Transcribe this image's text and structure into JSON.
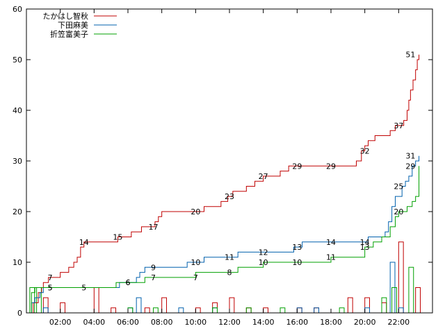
{
  "chart_data": {
    "type": "line",
    "xlim": [
      0,
      24
    ],
    "ylim": [
      0,
      60
    ],
    "yticks": [
      0,
      10,
      20,
      30,
      40,
      50,
      60
    ],
    "xticks": [
      {
        "v": 2,
        "label": "02:00"
      },
      {
        "v": 4,
        "label": "04:00"
      },
      {
        "v": 6,
        "label": "06:00"
      },
      {
        "v": 8,
        "label": "08:00"
      },
      {
        "v": 10,
        "label": "10:00"
      },
      {
        "v": 12,
        "label": "12:00"
      },
      {
        "v": 14,
        "label": "14:00"
      },
      {
        "v": 16,
        "label": "16:00"
      },
      {
        "v": 18,
        "label": "18:00"
      },
      {
        "v": 20,
        "label": "20:00"
      },
      {
        "v": 22,
        "label": "22:00"
      }
    ],
    "legend_position": "top-left",
    "series": [
      {
        "name": "たかはし智秋",
        "color": "#c00000",
        "points": [
          [
            0,
            0
          ],
          [
            0.4,
            2
          ],
          [
            0.7,
            4
          ],
          [
            0.9,
            5
          ],
          [
            1.0,
            6
          ],
          [
            1.3,
            7
          ],
          [
            2.0,
            8
          ],
          [
            2.5,
            9
          ],
          [
            2.8,
            10
          ],
          [
            3.0,
            11
          ],
          [
            3.2,
            13
          ],
          [
            3.4,
            14
          ],
          [
            5.4,
            15
          ],
          [
            6.2,
            16
          ],
          [
            6.8,
            17
          ],
          [
            7.6,
            18
          ],
          [
            7.8,
            19
          ],
          [
            8.0,
            20
          ],
          [
            10.5,
            21
          ],
          [
            11.5,
            22
          ],
          [
            11.9,
            23
          ],
          [
            12.2,
            24
          ],
          [
            13.0,
            25
          ],
          [
            13.5,
            26
          ],
          [
            14.0,
            27
          ],
          [
            15.0,
            28
          ],
          [
            15.5,
            29
          ],
          [
            19.5,
            30
          ],
          [
            19.8,
            32
          ],
          [
            20.0,
            33
          ],
          [
            20.2,
            34
          ],
          [
            20.6,
            35
          ],
          [
            21.5,
            36
          ],
          [
            21.8,
            37
          ],
          [
            22.3,
            38
          ],
          [
            22.5,
            40
          ],
          [
            22.6,
            42
          ],
          [
            22.7,
            44
          ],
          [
            22.85,
            46
          ],
          [
            23.0,
            48
          ],
          [
            23.1,
            50
          ],
          [
            23.2,
            51
          ]
        ],
        "labels": [
          [
            1.4,
            7,
            "7"
          ],
          [
            3.4,
            14,
            "14"
          ],
          [
            5.4,
            15,
            "15"
          ],
          [
            7.5,
            17,
            "17"
          ],
          [
            10.0,
            20,
            "20"
          ],
          [
            12.0,
            23,
            "23"
          ],
          [
            14.0,
            27,
            "27"
          ],
          [
            16.0,
            29,
            "29"
          ],
          [
            18.0,
            29,
            "29"
          ],
          [
            20.0,
            32,
            "32"
          ],
          [
            22.0,
            37,
            "37"
          ],
          [
            22.7,
            51,
            "51"
          ]
        ],
        "bars": [
          [
            1.0,
            3
          ],
          [
            2.0,
            2
          ],
          [
            4.0,
            5
          ],
          [
            5.0,
            1
          ],
          [
            7.0,
            1
          ],
          [
            8.0,
            3
          ],
          [
            10.0,
            1
          ],
          [
            11.0,
            2
          ],
          [
            12.0,
            3
          ],
          [
            13.0,
            1
          ],
          [
            14.0,
            1
          ],
          [
            16.0,
            1
          ],
          [
            17.0,
            1
          ],
          [
            19.0,
            3
          ],
          [
            20.0,
            3
          ],
          [
            21.0,
            2
          ],
          [
            22.0,
            14
          ],
          [
            23.0,
            5
          ]
        ]
      },
      {
        "name": "下田麻美",
        "color": "#0060ad",
        "points": [
          [
            0,
            0
          ],
          [
            0.3,
            2
          ],
          [
            0.5,
            3
          ],
          [
            0.8,
            4
          ],
          [
            1.0,
            5
          ],
          [
            5.0,
            5
          ],
          [
            5.5,
            6
          ],
          [
            6.5,
            7
          ],
          [
            6.7,
            8
          ],
          [
            7.0,
            9
          ],
          [
            9.5,
            10
          ],
          [
            10.5,
            11
          ],
          [
            12.0,
            11
          ],
          [
            12.5,
            12
          ],
          [
            15.5,
            12
          ],
          [
            15.8,
            13
          ],
          [
            16.3,
            14
          ],
          [
            20.0,
            14
          ],
          [
            20.2,
            15
          ],
          [
            21.0,
            15
          ],
          [
            21.2,
            16
          ],
          [
            21.4,
            18
          ],
          [
            21.6,
            21
          ],
          [
            21.8,
            23
          ],
          [
            22.2,
            25
          ],
          [
            22.4,
            26
          ],
          [
            22.6,
            27
          ],
          [
            22.8,
            29
          ],
          [
            23.0,
            30
          ],
          [
            23.2,
            31
          ]
        ],
        "labels": [
          [
            1.4,
            5,
            "5"
          ],
          [
            6.0,
            6,
            "6"
          ],
          [
            7.5,
            9,
            "9"
          ],
          [
            10.0,
            10,
            "10"
          ],
          [
            12.0,
            11,
            "11"
          ],
          [
            14.0,
            12,
            "12"
          ],
          [
            16.0,
            13,
            "13"
          ],
          [
            18.0,
            14,
            "14"
          ],
          [
            20.0,
            14,
            "14"
          ],
          [
            22.0,
            25,
            "25"
          ],
          [
            22.7,
            31,
            "31"
          ]
        ],
        "bars": [
          [
            1.0,
            1
          ],
          [
            6.0,
            1
          ],
          [
            6.5,
            3
          ],
          [
            9.0,
            1
          ],
          [
            11.0,
            1
          ],
          [
            16.0,
            1
          ],
          [
            17.0,
            1
          ],
          [
            20.0,
            1
          ],
          [
            21.5,
            10
          ],
          [
            22.0,
            1
          ]
        ]
      },
      {
        "name": "折笠富美子",
        "color": "#00a000",
        "points": [
          [
            0,
            0
          ],
          [
            0.3,
            4
          ],
          [
            0.5,
            5
          ],
          [
            5.0,
            5
          ],
          [
            5.3,
            6
          ],
          [
            6.5,
            6
          ],
          [
            7.0,
            7
          ],
          [
            9.5,
            7
          ],
          [
            10.0,
            8
          ],
          [
            11.5,
            8
          ],
          [
            12.5,
            9
          ],
          [
            13.5,
            9
          ],
          [
            14.0,
            10
          ],
          [
            17.5,
            10
          ],
          [
            18.0,
            11
          ],
          [
            19.5,
            11
          ],
          [
            20.0,
            13
          ],
          [
            20.5,
            14
          ],
          [
            21.0,
            15
          ],
          [
            21.5,
            17
          ],
          [
            21.8,
            19
          ],
          [
            22.0,
            20
          ],
          [
            22.5,
            21
          ],
          [
            22.8,
            22
          ],
          [
            23.0,
            23
          ],
          [
            23.2,
            29
          ]
        ],
        "labels": [
          [
            1.4,
            5,
            "5"
          ],
          [
            3.4,
            5,
            "5"
          ],
          [
            6.0,
            6,
            "6"
          ],
          [
            7.5,
            7,
            "7"
          ],
          [
            10.0,
            7,
            "7"
          ],
          [
            12.0,
            8,
            "8"
          ],
          [
            14.0,
            10,
            "10"
          ],
          [
            16.0,
            10,
            "10"
          ],
          [
            18.0,
            11,
            "11"
          ],
          [
            20.0,
            13,
            "13"
          ],
          [
            22.0,
            20,
            "20"
          ],
          [
            22.7,
            29,
            "29"
          ]
        ],
        "bars": [
          [
            0.2,
            5
          ],
          [
            0.6,
            5
          ],
          [
            6.0,
            1
          ],
          [
            7.5,
            1
          ],
          [
            11.0,
            1
          ],
          [
            13.0,
            1
          ],
          [
            15.0,
            1
          ],
          [
            18.5,
            1
          ],
          [
            21.0,
            3
          ],
          [
            21.6,
            5
          ],
          [
            22.6,
            9
          ]
        ]
      }
    ]
  }
}
